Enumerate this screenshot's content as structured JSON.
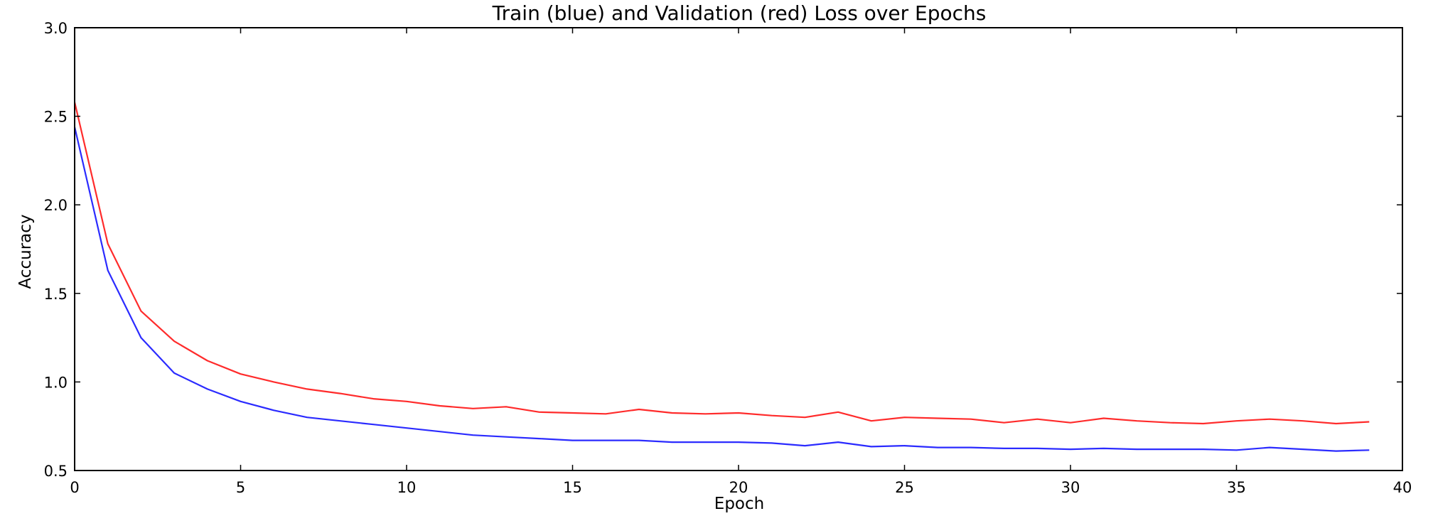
{
  "chart_data": {
    "type": "line",
    "title": "Train (blue) and Validation (red) Loss over Epochs",
    "xlabel": "Epoch",
    "ylabel": "Accuracy",
    "xlim": [
      0,
      40
    ],
    "ylim": [
      0.5,
      3.0
    ],
    "xticks": [
      "0",
      "5",
      "10",
      "15",
      "20",
      "25",
      "30",
      "35",
      "40"
    ],
    "yticks": [
      "0.5",
      "1.0",
      "1.5",
      "2.0",
      "2.5",
      "3.0"
    ],
    "grid": false,
    "legend": "none",
    "x": [
      0,
      1,
      2,
      3,
      4,
      5,
      6,
      7,
      8,
      9,
      10,
      11,
      12,
      13,
      14,
      15,
      16,
      17,
      18,
      19,
      20,
      21,
      22,
      23,
      24,
      25,
      26,
      27,
      28,
      29,
      30,
      31,
      32,
      33,
      34,
      35,
      36,
      37,
      38,
      39
    ],
    "series": [
      {
        "color": "#2b2bff",
        "values": [
          2.44,
          1.63,
          1.25,
          1.05,
          0.96,
          0.89,
          0.84,
          0.8,
          0.78,
          0.76,
          0.74,
          0.72,
          0.7,
          0.69,
          0.68,
          0.67,
          0.67,
          0.67,
          0.66,
          0.66,
          0.66,
          0.655,
          0.64,
          0.66,
          0.635,
          0.64,
          0.63,
          0.63,
          0.625,
          0.625,
          0.62,
          0.625,
          0.62,
          0.62,
          0.62,
          0.615,
          0.63,
          0.62,
          0.61,
          0.615
        ]
      },
      {
        "color": "#ff2b2b",
        "values": [
          2.58,
          1.78,
          1.4,
          1.23,
          1.12,
          1.045,
          1.0,
          0.96,
          0.935,
          0.905,
          0.89,
          0.865,
          0.85,
          0.86,
          0.83,
          0.825,
          0.82,
          0.845,
          0.825,
          0.82,
          0.825,
          0.81,
          0.8,
          0.83,
          0.78,
          0.8,
          0.795,
          0.79,
          0.77,
          0.79,
          0.77,
          0.795,
          0.78,
          0.77,
          0.765,
          0.78,
          0.79,
          0.78,
          0.765,
          0.775
        ]
      }
    ]
  }
}
